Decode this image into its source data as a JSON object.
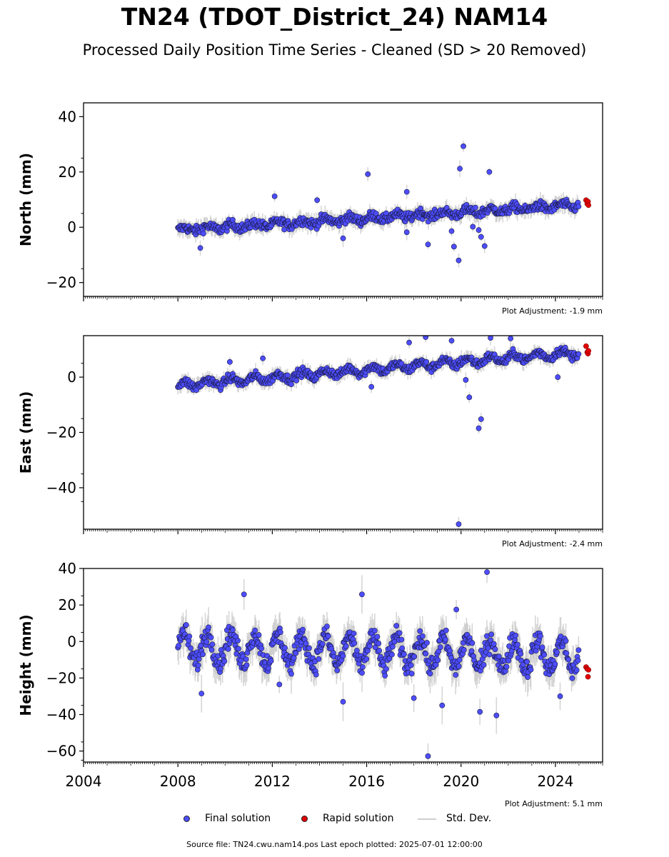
{
  "title": "TN24 (TDOT_District_24) NAM14",
  "subtitle": "Processed Daily Position Time Series - Cleaned (SD > 20 Removed)",
  "legend": {
    "final": "Final solution",
    "rapid": "Rapid solution",
    "std": "Std. Dev."
  },
  "footer": "Source file: TN24.cwu.nam14.pos  Last epoch plotted: 2025-07-01 12:00:00",
  "colors": {
    "final": "#4d4dff",
    "rapid": "#e00000",
    "std": "#c8c8c8",
    "edge": "#1a1a40"
  },
  "chart_data": [
    {
      "type": "scatter",
      "ylabel": "North (mm)",
      "adjustment": "Plot Adjustment: -1.9 mm",
      "xlim": [
        2004,
        2026
      ],
      "ylim": [
        -25,
        45
      ],
      "yticks": [
        -20,
        0,
        20,
        40
      ],
      "ytick_labels": [
        "−20",
        "0",
        "20",
        "40"
      ],
      "trend": {
        "start": [
          2008.0,
          -1.0
        ],
        "end": [
          2025.0,
          8.0
        ],
        "noise": 2.2
      },
      "seasonal_amplitude": 0.8,
      "outliers": [
        [
          2008.95,
          -7.5
        ],
        [
          2012.1,
          11.2
        ],
        [
          2013.9,
          9.8
        ],
        [
          2016.05,
          19.2
        ],
        [
          2017.7,
          12.8
        ],
        [
          2017.7,
          -1.8
        ],
        [
          2018.6,
          -6.2
        ],
        [
          2019.6,
          -1.4
        ],
        [
          2019.7,
          -7.0
        ],
        [
          2019.9,
          -12.0
        ],
        [
          2019.95,
          21.2
        ],
        [
          2020.1,
          29.3
        ],
        [
          2020.5,
          0.2
        ],
        [
          2020.75,
          -1.0
        ],
        [
          2020.85,
          -3.5
        ],
        [
          2021.0,
          -6.8
        ],
        [
          2021.2,
          20.0
        ],
        [
          2015.0,
          -4.0
        ]
      ],
      "rapid": [
        [
          2025.3,
          9.8
        ],
        [
          2025.35,
          8.5
        ],
        [
          2025.38,
          9.3
        ],
        [
          2025.4,
          8.0
        ]
      ]
    },
    {
      "type": "scatter",
      "ylabel": "East (mm)",
      "adjustment": "Plot Adjustment: -2.4 mm",
      "xlim": [
        2004,
        2026
      ],
      "ylim": [
        -55,
        15
      ],
      "yticks": [
        -40,
        -20,
        0
      ],
      "ytick_labels": [
        "−40",
        "−20",
        "0"
      ],
      "trend": {
        "start": [
          2008.0,
          -3.0
        ],
        "end": [
          2025.0,
          9.0
        ],
        "noise": 2.0
      },
      "seasonal_amplitude": 1.2,
      "outliers": [
        [
          2010.2,
          5.5
        ],
        [
          2011.6,
          6.8
        ],
        [
          2016.2,
          -3.5
        ],
        [
          2017.8,
          12.5
        ],
        [
          2018.5,
          14.5
        ],
        [
          2019.6,
          13.2
        ],
        [
          2020.2,
          -1.0
        ],
        [
          2020.35,
          -7.3
        ],
        [
          2020.75,
          -18.5
        ],
        [
          2020.85,
          -15.2
        ],
        [
          2021.25,
          14.2
        ],
        [
          2022.1,
          14.0
        ],
        [
          2019.9,
          -53.2
        ],
        [
          2024.1,
          0.0
        ]
      ],
      "rapid": [
        [
          2025.3,
          11.2
        ],
        [
          2025.35,
          9.0
        ],
        [
          2025.38,
          8.5
        ],
        [
          2025.4,
          9.5
        ]
      ]
    },
    {
      "type": "scatter",
      "ylabel": "Height (mm)",
      "adjustment": "Plot Adjustment: 5.1 mm",
      "xlim": [
        2004,
        2026
      ],
      "ylim": [
        -66,
        40
      ],
      "yticks": [
        -60,
        -40,
        -20,
        0,
        20,
        40
      ],
      "ytick_labels": [
        "−60",
        "−40",
        "−20",
        "0",
        "20",
        "40"
      ],
      "xticks": [
        2004,
        2008,
        2012,
        2016,
        2020,
        2024
      ],
      "xtick_labels": [
        "2004",
        "2008",
        "2012",
        "2016",
        "2020",
        "2024"
      ],
      "trend": {
        "start": [
          2008.0,
          -3.0
        ],
        "end": [
          2025.0,
          -8.0
        ],
        "noise": 7.5
      },
      "seasonal_amplitude": 8.0,
      "outliers": [
        [
          2009.0,
          -28.5
        ],
        [
          2010.8,
          25.8
        ],
        [
          2012.3,
          -23.5
        ],
        [
          2015.0,
          -33.0
        ],
        [
          2015.8,
          25.8
        ],
        [
          2018.0,
          -31.0
        ],
        [
          2018.6,
          -62.8
        ],
        [
          2019.8,
          17.5
        ],
        [
          2020.8,
          -38.5
        ],
        [
          2021.1,
          38.0
        ],
        [
          2021.5,
          -40.5
        ],
        [
          2019.2,
          -35.0
        ],
        [
          2024.2,
          -30.0
        ]
      ],
      "rapid": [
        [
          2025.3,
          -14.0
        ],
        [
          2025.35,
          -15.0
        ],
        [
          2025.38,
          -19.3
        ],
        [
          2025.4,
          -15.5
        ]
      ]
    }
  ]
}
